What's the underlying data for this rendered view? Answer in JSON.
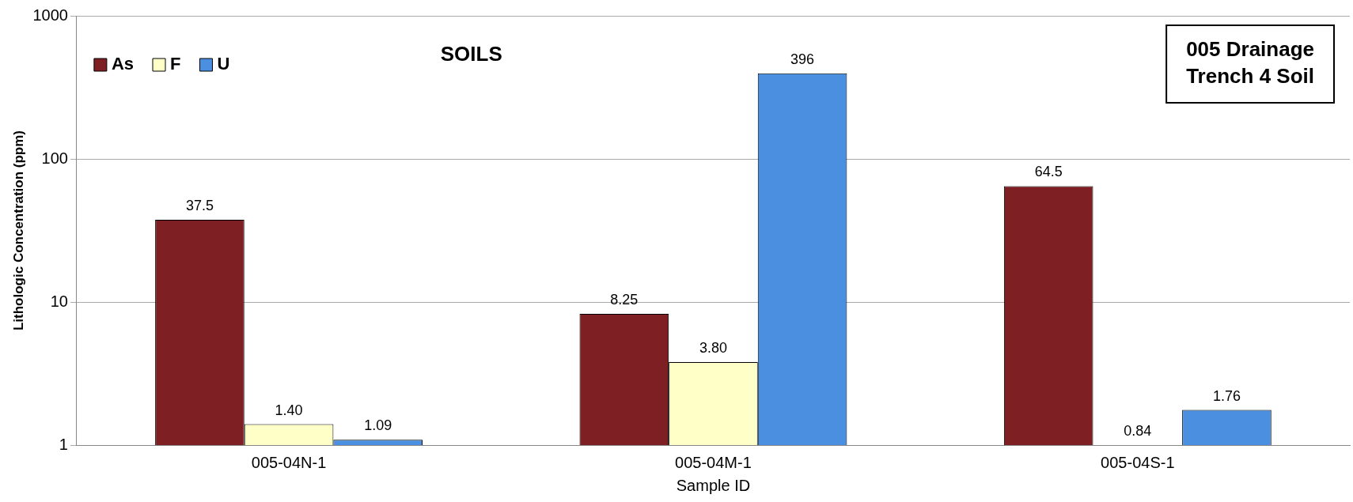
{
  "chart_data": {
    "type": "bar",
    "title": "SOILS",
    "xlabel": "Sample ID",
    "ylabel": "Lithologic Concentration (ppm)",
    "annotations": [
      "005 Drainage\nTrench 4 Soil"
    ],
    "categories": [
      "005-04N-1",
      "005-04M-1",
      "005-04S-1"
    ],
    "series": [
      {
        "name": "As",
        "color": "#7e1f24",
        "values": [
          37.5,
          8.25,
          64.5
        ],
        "value_labels": [
          "37.5",
          "8.25",
          "64.5"
        ]
      },
      {
        "name": "F",
        "color": "#ffffc8",
        "values": [
          1.4,
          3.8,
          null
        ],
        "value_labels": [
          "1.40",
          "3.80",
          "0.84"
        ]
      },
      {
        "name": "U",
        "color": "#4a8fe0",
        "values": [
          1.09,
          396,
          1.76
        ],
        "value_labels": [
          "1.09",
          "396",
          "1.76"
        ]
      }
    ],
    "log": "y",
    "ylim": [
      1,
      1000
    ],
    "yticks": [
      1,
      10,
      100,
      1000
    ],
    "grid": "y",
    "legend": "top left"
  }
}
